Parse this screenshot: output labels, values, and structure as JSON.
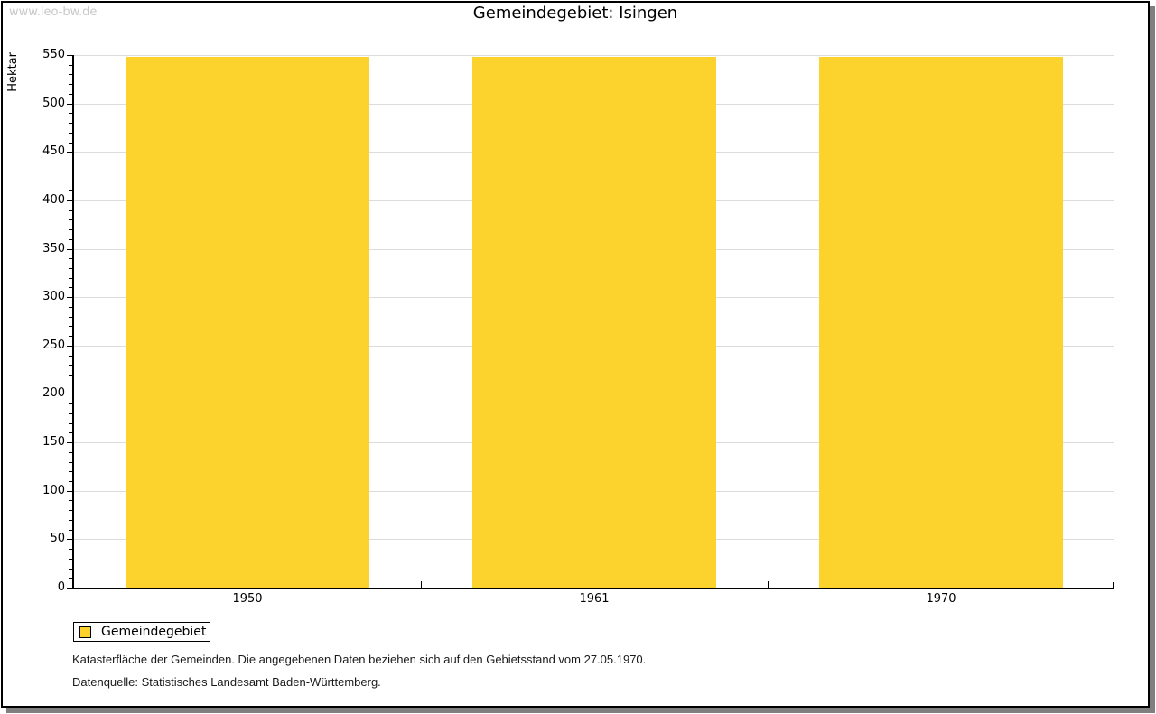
{
  "watermark": "www.leo-bw.de",
  "header": {
    "title": "Gemeindegebiet: Isingen"
  },
  "chart_data": {
    "type": "bar",
    "title": "Gemeindegebiet: Isingen",
    "categories": [
      "1950",
      "1961",
      "1970"
    ],
    "series": [
      {
        "name": "Gemeindegebiet",
        "color": "#fcd32d",
        "values": [
          548,
          548,
          548
        ]
      }
    ],
    "xlabel": "",
    "ylabel": "Hektar",
    "ylim": [
      0,
      550
    ],
    "yticks_major": [
      0,
      50,
      100,
      150,
      200,
      250,
      300,
      350,
      400,
      450,
      500,
      550
    ],
    "ytick_minor_step": 10,
    "grid": "horizontal lines at major y ticks",
    "legend_position": "bottom-left outside plot"
  },
  "legend": {
    "items": [
      {
        "label": "Gemeindegebiet",
        "swatch_color": "#fcd32d"
      }
    ]
  },
  "footnotes": {
    "line1": "Katasterfläche der Gemeinden. Die angegebenen Daten beziehen sich auf den Gebietsstand vom 27.05.1970.",
    "line2": "Datenquelle: Statistisches Landesamt Baden-Württemberg."
  },
  "colors": {
    "bar": "#fcd32d",
    "axis": "#000000",
    "grid": "#dcdcdc",
    "watermark": "#c8c8c8",
    "frame_border": "#000000",
    "frame_shadow": "#7f7f7f",
    "background": "#ffffff",
    "text": "#000000"
  }
}
